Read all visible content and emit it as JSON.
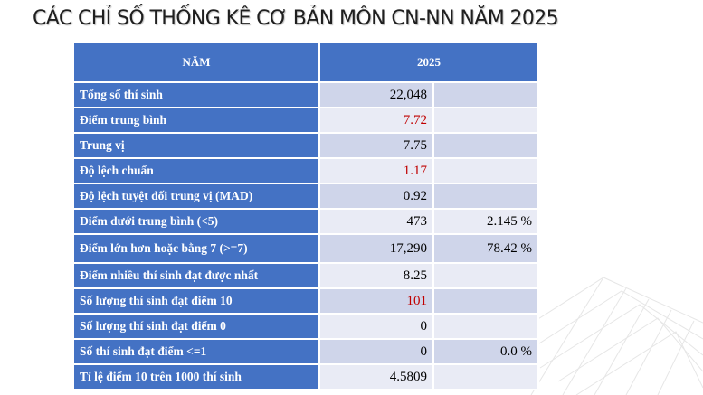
{
  "title": "CÁC CHỈ SỐ THỐNG KÊ CƠ BẢN MÔN CN-NN NĂM 2025",
  "table": {
    "header": {
      "col1": "NĂM",
      "col2": "2025"
    },
    "rows": [
      {
        "label": "Tổng số thí sinh",
        "value": "22,048",
        "pct": "",
        "red": false
      },
      {
        "label": "Điểm trung bình",
        "value": "7.72",
        "pct": "",
        "red": true
      },
      {
        "label": "Trung vị",
        "value": "7.75",
        "pct": "",
        "red": false
      },
      {
        "label": "Độ lệch chuẩn",
        "value": "1.17",
        "pct": "",
        "red": true
      },
      {
        "label": "Độ lệch tuyệt đối trung vị (MAD)",
        "value": "0.92",
        "pct": "",
        "red": false
      },
      {
        "label": "Điểm dưới trung bình (<5)",
        "value": "473",
        "pct": "2.145 %",
        "red": false
      },
      {
        "label": "Điểm lớn hơn hoặc bằng 7 (>=7)",
        "value": "17,290",
        "pct": "78.42 %",
        "red": false
      },
      {
        "label": "Điểm nhiều thí sinh đạt được nhất",
        "value": "8.25",
        "pct": "",
        "red": false
      },
      {
        "label": "Số lượng thí sinh đạt điểm 10",
        "value": "101",
        "pct": "",
        "red": true
      },
      {
        "label": "Số lượng thí sinh đạt điểm 0",
        "value": "0",
        "pct": "",
        "red": false
      },
      {
        "label": "Số thí sinh đạt điểm <=1",
        "value": "0",
        "pct": "0.0 %",
        "red": false
      },
      {
        "label": "Tỉ lệ điểm 10 trên 1000 thí sinh",
        "value": "4.5809",
        "pct": "",
        "red": false
      }
    ]
  },
  "colors": {
    "header_bg": "#4472c4",
    "cell_dark": "#cfd5ea",
    "cell_light": "#e9ebf5",
    "highlight_red": "#c00000"
  }
}
